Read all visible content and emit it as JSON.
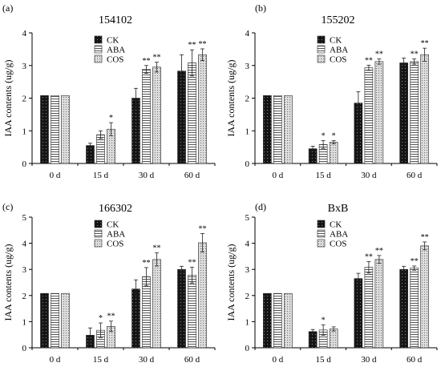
{
  "chart_data": [
    {
      "type": "bar",
      "panel_label": "(a)",
      "title": "154102",
      "ylabel": "IAA contents (ug/g)",
      "xlabel": "",
      "ylim": [
        0,
        4
      ],
      "yticks": [
        "0",
        "1",
        "2",
        "3",
        "4"
      ],
      "categories": [
        "0 d",
        "15 d",
        "30 d",
        "60 d"
      ],
      "legend_position": "top-left",
      "series": [
        {
          "name": "CK",
          "pattern": "dots-dark",
          "values": [
            2.08,
            0.55,
            2.0,
            2.83
          ],
          "errors": [
            0,
            0.07,
            0.3,
            0.5
          ],
          "annotations": [
            "",
            "",
            "",
            ""
          ]
        },
        {
          "name": "ABA",
          "pattern": "horizontal-lines",
          "values": [
            2.08,
            0.88,
            2.88,
            3.08
          ],
          "errors": [
            0,
            0.12,
            0.12,
            0.4
          ],
          "annotations": [
            "",
            "",
            "**",
            "**"
          ]
        },
        {
          "name": "COS",
          "pattern": "dots-light",
          "values": [
            2.08,
            1.05,
            2.95,
            3.33
          ],
          "errors": [
            0,
            0.2,
            0.15,
            0.18
          ],
          "annotations": [
            "",
            "*",
            "**",
            "**"
          ]
        }
      ]
    },
    {
      "type": "bar",
      "panel_label": "(b)",
      "title": "155202",
      "ylabel": "IAA contents (ug/g)",
      "xlabel": "",
      "ylim": [
        0,
        4
      ],
      "yticks": [
        "0",
        "1",
        "2",
        "3",
        "4"
      ],
      "categories": [
        "0 d",
        "15 d",
        "30 d",
        "60 d"
      ],
      "legend_position": "top-left",
      "series": [
        {
          "name": "CK",
          "pattern": "dots-dark",
          "values": [
            2.08,
            0.45,
            1.85,
            3.08
          ],
          "errors": [
            0,
            0.08,
            0.35,
            0.15
          ],
          "annotations": [
            "",
            "",
            "",
            ""
          ]
        },
        {
          "name": "ABA",
          "pattern": "horizontal-lines",
          "values": [
            2.08,
            0.58,
            2.93,
            3.12
          ],
          "errors": [
            0,
            0.12,
            0.08,
            0.08
          ],
          "annotations": [
            "",
            "*",
            "**",
            "**"
          ]
        },
        {
          "name": "COS",
          "pattern": "dots-light",
          "values": [
            2.08,
            0.65,
            3.12,
            3.33
          ],
          "errors": [
            0,
            0.05,
            0.08,
            0.2
          ],
          "annotations": [
            "",
            "*",
            "**",
            "**"
          ]
        }
      ]
    },
    {
      "type": "bar",
      "panel_label": "(c)",
      "title": "166302",
      "ylabel": "IAA contents (ug/g)",
      "xlabel": "",
      "ylim": [
        0,
        5
      ],
      "yticks": [
        "0",
        "1",
        "2",
        "3",
        "4",
        "5"
      ],
      "categories": [
        "0 d",
        "15 d",
        "30 d",
        "60 d"
      ],
      "legend_position": "top-left",
      "series": [
        {
          "name": "CK",
          "pattern": "dots-dark",
          "values": [
            2.08,
            0.48,
            2.25,
            3.0
          ],
          "errors": [
            0,
            0.28,
            0.35,
            0.12
          ],
          "annotations": [
            "",
            "",
            "",
            ""
          ]
        },
        {
          "name": "ABA",
          "pattern": "horizontal-lines",
          "values": [
            2.08,
            0.67,
            2.72,
            2.78
          ],
          "errors": [
            0,
            0.28,
            0.35,
            0.3
          ],
          "annotations": [
            "",
            "*",
            "**",
            "**"
          ]
        },
        {
          "name": "COS",
          "pattern": "dots-light",
          "values": [
            2.08,
            0.82,
            3.38,
            4.02
          ],
          "errors": [
            0,
            0.2,
            0.25,
            0.35
          ],
          "annotations": [
            "",
            "**",
            "**",
            "**"
          ]
        }
      ]
    },
    {
      "type": "bar",
      "panel_label": "(d)",
      "title": "BxB",
      "ylabel": "IAA contents (ug/g)",
      "xlabel": "",
      "ylim": [
        0,
        5
      ],
      "yticks": [
        "0",
        "1",
        "2",
        "3",
        "4",
        "5"
      ],
      "categories": [
        "0 d",
        "15 d",
        "30 d",
        "60 d"
      ],
      "legend_position": "top-left",
      "series": [
        {
          "name": "CK",
          "pattern": "dots-dark",
          "values": [
            2.08,
            0.62,
            2.65,
            3.0
          ],
          "errors": [
            0,
            0.08,
            0.2,
            0.12
          ],
          "annotations": [
            "",
            "",
            "",
            ""
          ]
        },
        {
          "name": "ABA",
          "pattern": "horizontal-lines",
          "values": [
            2.08,
            0.68,
            3.08,
            3.05
          ],
          "errors": [
            0,
            0.2,
            0.22,
            0.08
          ],
          "annotations": [
            "",
            "*",
            "**",
            "**"
          ]
        },
        {
          "name": "COS",
          "pattern": "dots-light",
          "values": [
            2.08,
            0.72,
            3.38,
            3.9
          ],
          "errors": [
            0,
            0.08,
            0.15,
            0.15
          ],
          "annotations": [
            "",
            "",
            "**",
            "**"
          ]
        }
      ]
    }
  ]
}
